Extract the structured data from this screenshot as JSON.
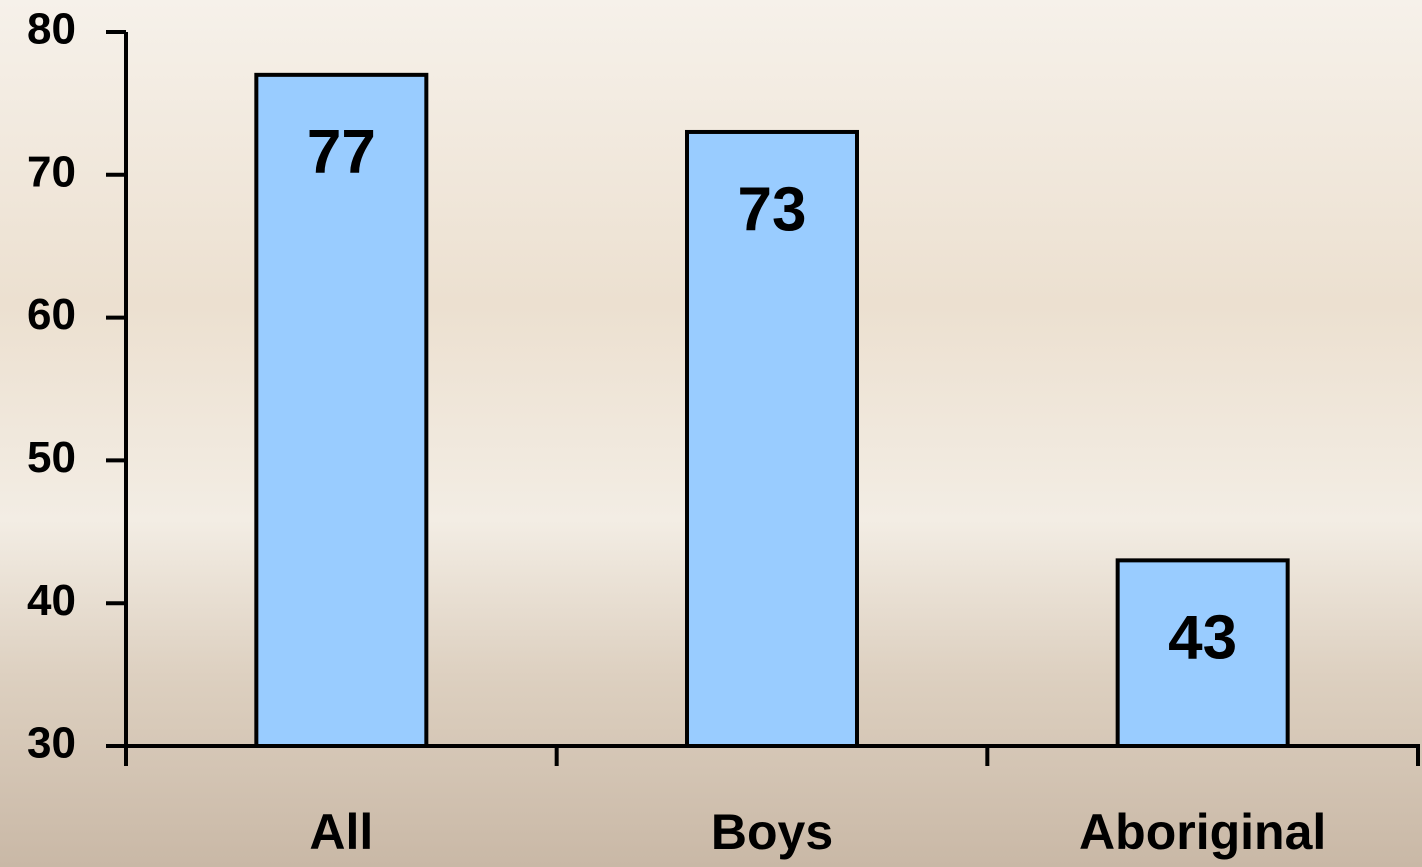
{
  "chart_data": {
    "type": "bar",
    "categories": [
      "All",
      "Boys",
      "Aboriginal"
    ],
    "values": [
      77,
      73,
      43
    ],
    "color": "#99ccff",
    "ylim": [
      30,
      80
    ],
    "yticks": [
      30,
      40,
      50,
      60,
      70,
      80
    ]
  }
}
